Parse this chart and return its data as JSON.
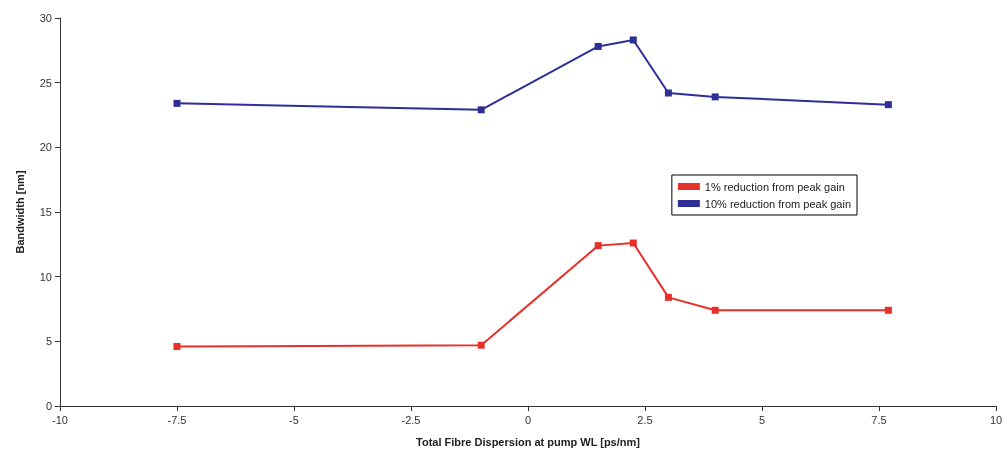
{
  "chart_data": {
    "type": "line",
    "xlabel": "Total Fibre Dispersion at pump WL [ps/nm]",
    "ylabel": "Bandwidth [nm]",
    "x": [
      -7.5,
      -1,
      1.5,
      2.25,
      3,
      4,
      7.7
    ],
    "series": [
      {
        "name": "1% reduction from peak gain",
        "color": "#e8302a",
        "values": [
          4.6,
          4.7,
          12.4,
          12.6,
          8.4,
          7.4,
          7.4
        ]
      },
      {
        "name": "10% reduction from peak gain",
        "color": "#2e2e96",
        "values": [
          23.4,
          22.9,
          27.8,
          28.3,
          24.2,
          23.9,
          23.3
        ]
      }
    ],
    "xlim": [
      -10,
      10
    ],
    "xticks": [
      -10,
      -7.5,
      -5,
      -2.5,
      0,
      2.5,
      5,
      7.5,
      10
    ],
    "ylim": [
      0,
      30
    ],
    "yticks": [
      0,
      5,
      10,
      15,
      20,
      25,
      30
    ],
    "grid": false,
    "legend": "right",
    "marker": "square",
    "line_style": "solid"
  }
}
